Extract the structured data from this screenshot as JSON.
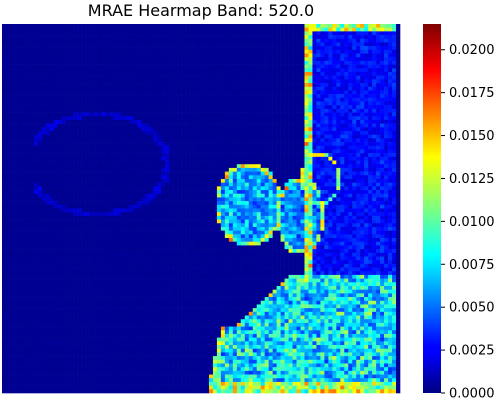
{
  "chart_data": {
    "type": "heatmap",
    "title": "MRAE Hearmap Band: 520.0",
    "xlabel": "",
    "ylabel": "",
    "colormap": "jet",
    "value_range": [
      0.0,
      0.0215
    ],
    "colorbar_ticks": [
      "0.0000",
      "0.0025",
      "0.0050",
      "0.0075",
      "0.0100",
      "0.0125",
      "0.0150",
      "0.0175",
      "0.0200"
    ],
    "colorbar_tick_values": [
      0.0,
      0.0025,
      0.005,
      0.0075,
      0.01,
      0.0125,
      0.015,
      0.0175,
      0.02
    ],
    "grid": false,
    "axes_visible": false,
    "background_level": 0.0004,
    "regions": [
      {
        "name": "top-right-tissue-band",
        "typical_value": 0.0032
      },
      {
        "name": "left-ellipse-interior",
        "typical_value": 0.0065
      },
      {
        "name": "right-ellipse-interior",
        "typical_value": 0.0055
      },
      {
        "name": "bottom-right-mass",
        "typical_value": 0.0075
      },
      {
        "name": "faint-left-outline",
        "typical_value": 0.0022
      },
      {
        "name": "edge-highlights",
        "typical_value": 0.0115
      }
    ]
  }
}
